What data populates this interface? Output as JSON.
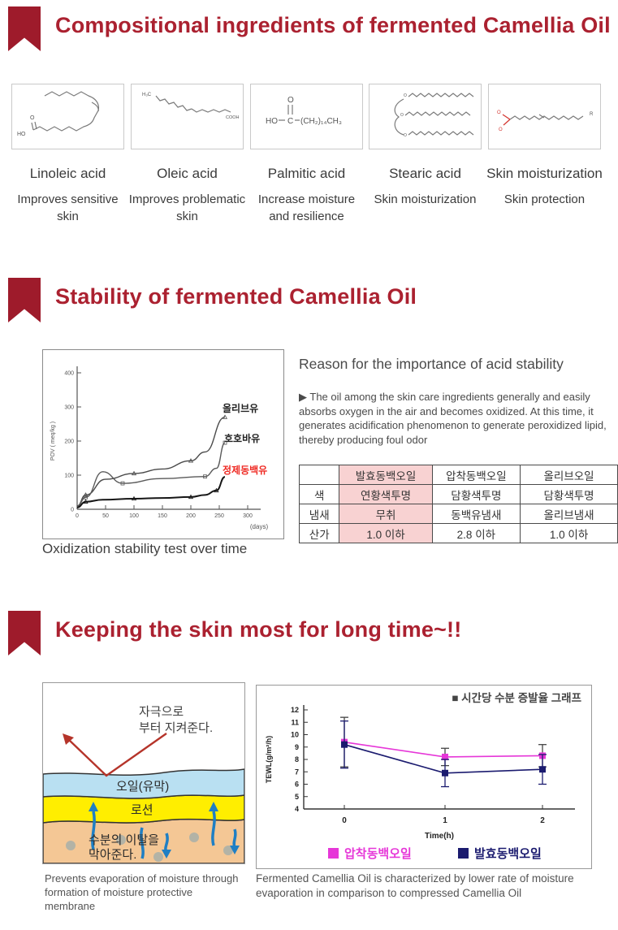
{
  "theme": {
    "accent_red": "#9e1b2b",
    "title_red": "#ab2130",
    "table_highlight_pink": "#f8d2d2",
    "magenta_series": "#e637d8",
    "navy_series": "#1b1b6f",
    "camellia_label_red": "#ef2b24"
  },
  "section1": {
    "title": "Compositional ingredients of fermented Camellia Oil",
    "ingredients": [
      {
        "name": "Linoleic acid",
        "benefit": "Improves sensitive skin"
      },
      {
        "name": "Oleic acid",
        "benefit": "Improves problematic skin"
      },
      {
        "name": "Palmitic acid",
        "benefit": "Increase moisture and resilience"
      },
      {
        "name": "Stearic acid",
        "benefit": "Skin moisturization"
      },
      {
        "name": "Skin moisturization",
        "benefit": "Skin protection"
      }
    ],
    "structures": {
      "linoleic": {
        "ho": "HO",
        "o": "O"
      },
      "oleic": {
        "h3c": "H₃C",
        "cooh": "COOH"
      },
      "palmitic": {
        "ho": "HO",
        "c": "C",
        "o": "O",
        "chain": "(CH₂)₁₄CH₃"
      },
      "triglyceride": {
        "o1": "O",
        "o2": "O",
        "o3": "O"
      },
      "moisturization": {
        "o_top": "O",
        "o_bottom": "O",
        "r": "R"
      }
    }
  },
  "section2": {
    "title": "Stability of fermented Camellia Oil",
    "graph_caption": "Oxidization stability test over time",
    "reason_heading": "Reason for the importance of acid stability",
    "reason_body": "▶ The oil among the skin care ingredients generally and easily absorbs oxygen in the air and becomes oxidized. At this time, it generates acidification phenomenon to generate peroxidized lipid, thereby producing foul odor",
    "table": {
      "headers": [
        "",
        "발효동백오일",
        "압착동백오일",
        "올리브오일"
      ],
      "rows": [
        [
          "색",
          "연황색투명",
          "담황색투명",
          "담황색투명"
        ],
        [
          "냄새",
          "무취",
          "동백유냄새",
          "올리브냄새"
        ],
        [
          "산가",
          "1.0 이하",
          "2.8 이하",
          "1.0 이하"
        ]
      ]
    }
  },
  "section3": {
    "title": "Keeping the skin most for long time~!!",
    "diagram": {
      "label_protect_line1": "자극으로",
      "label_protect_line2": "부터 지켜준다.",
      "label_oil_layer": "오일(유막)",
      "label_lotion_layer": "로션",
      "label_moisture_line1": "수분의 이탈을",
      "label_moisture_line2": "막아준다."
    },
    "caption_left": "Prevents evaporation of moisture through formation of moisture protective membrane",
    "caption_right": "Fermented Camellia Oil is characterized by lower rate of moisture evaporation in comparison to compressed Camellia Oil"
  },
  "chart_data": [
    {
      "type": "line",
      "title": "Oxidization stability test over time",
      "ylabel": "POV ( meq/kg )",
      "xlabel": "(days)",
      "xlim": [
        0,
        300
      ],
      "ylim": [
        0,
        400
      ],
      "x_ticks": [
        0,
        50,
        100,
        150,
        200,
        250,
        300
      ],
      "y_ticks": [
        0,
        100,
        200,
        300,
        400
      ],
      "grid": false,
      "legend_position": "right-of-curves",
      "series": [
        {
          "name": "올리브유",
          "color": "#4a4a4a",
          "marker": "triangle",
          "label_color": "#222222",
          "label_pos": [
            221,
            76
          ],
          "x": [
            0,
            15,
            50,
            100,
            150,
            200,
            225,
            260
          ],
          "y": [
            10,
            42,
            88,
            105,
            118,
            142,
            168,
            270
          ]
        },
        {
          "name": "호호바유",
          "color": "#5a5a5a",
          "marker": "square",
          "label_color": "#222222",
          "label_pos": [
            223,
            113
          ],
          "x": [
            0,
            15,
            45,
            80,
            150,
            225,
            245,
            260
          ],
          "y": [
            8,
            35,
            110,
            76,
            90,
            96,
            120,
            195
          ]
        },
        {
          "name": "정제동백유",
          "color": "#161616",
          "marker": "triangle",
          "label_color": "#ef2b24",
          "label_pos": [
            221,
            152
          ],
          "x": [
            0,
            15,
            45,
            100,
            150,
            200,
            225,
            245,
            260
          ],
          "y": [
            5,
            22,
            28,
            31,
            33,
            36,
            42,
            55,
            95
          ]
        }
      ]
    },
    {
      "type": "line",
      "title": "■ 시간당 수분 증발율 그래프",
      "ylabel": "TEWL(g/m²/h)",
      "xlabel": "Time(h)",
      "x": [
        0,
        1,
        2
      ],
      "ylim": [
        4,
        12
      ],
      "y_ticks": [
        4,
        5,
        6,
        7,
        8,
        9,
        10,
        11,
        12
      ],
      "grid": false,
      "legend_position": "bottom",
      "series": [
        {
          "name": "압착동백오일",
          "color": "#e637d8",
          "err_color": "#444444",
          "values": [
            9.4,
            8.2,
            8.3
          ],
          "err": [
            2.0,
            0.7,
            0.9
          ]
        },
        {
          "name": "발효동백오일",
          "color": "#1b1b6f",
          "err_color": "#1b1b6f",
          "values": [
            9.2,
            6.9,
            7.2
          ],
          "err": [
            1.9,
            1.1,
            1.2
          ]
        }
      ]
    }
  ]
}
